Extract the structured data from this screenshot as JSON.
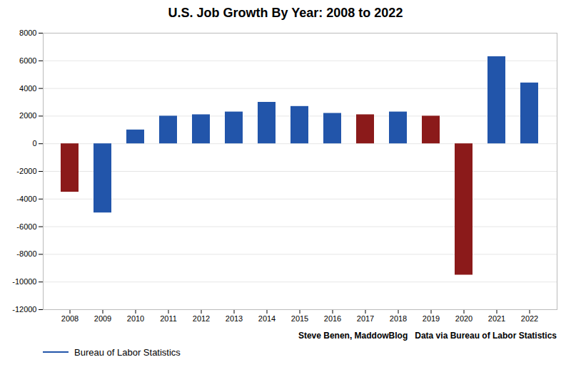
{
  "chart_data": {
    "type": "bar",
    "title": "U.S. Job Growth By Year: 2008 to 2022",
    "categories": [
      "2008",
      "2009",
      "2010",
      "2011",
      "2012",
      "2013",
      "2014",
      "2015",
      "2016",
      "2017",
      "2018",
      "2019",
      "2020",
      "2021",
      "2022"
    ],
    "series": [
      {
        "name": "Bureau of Labor Statistics",
        "color": "#2255AA",
        "values": [
          -3500,
          -5000,
          1000,
          2000,
          2100,
          2300,
          3000,
          2700,
          2200,
          2100,
          2300,
          2000,
          -9500,
          6300,
          4400
        ],
        "colors": [
          "#8B1A1A",
          "#2255AA",
          "#2255AA",
          "#2255AA",
          "#2255AA",
          "#2255AA",
          "#2255AA",
          "#2255AA",
          "#2255AA",
          "#8B1A1A",
          "#2255AA",
          "#8B1A1A",
          "#8B1A1A",
          "#2255AA",
          "#2255AA"
        ]
      }
    ],
    "ylim": [
      -12000,
      8000
    ],
    "yticks": [
      -12000,
      -10000,
      -8000,
      -6000,
      -4000,
      -2000,
      0,
      2000,
      4000,
      6000,
      8000
    ],
    "grid": true,
    "legend": "lower left",
    "annotations": [
      "Steve Benen, MaddowBlog   Data via Bureau of Labor Statistics"
    ]
  }
}
